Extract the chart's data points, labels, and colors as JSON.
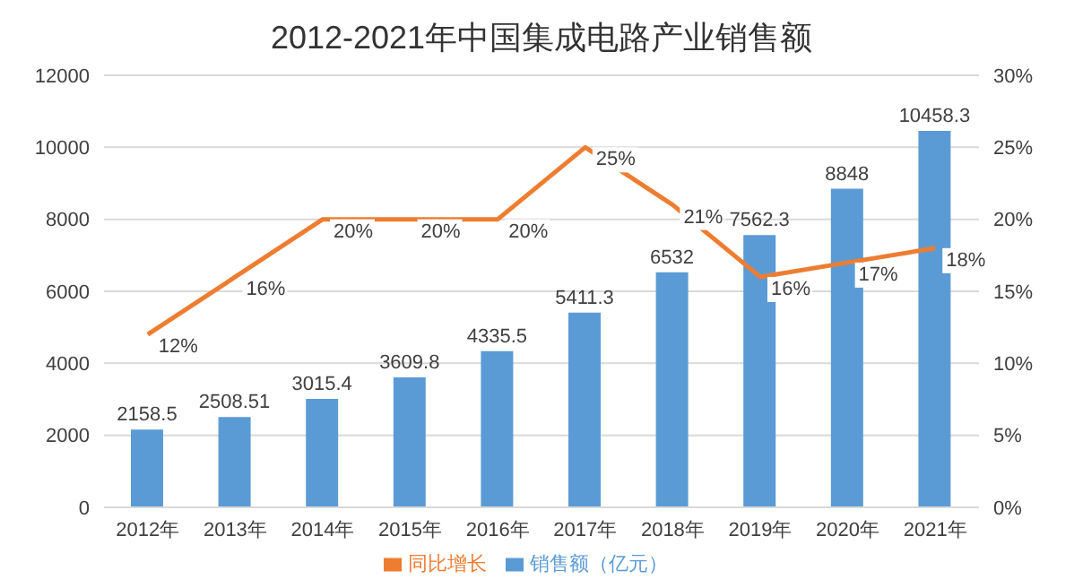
{
  "chart_data": {
    "type": "bar",
    "title": "2012-2021年中国集成电路产业销售额",
    "categories": [
      "2012年",
      "2013年",
      "2014年",
      "2015年",
      "2016年",
      "2017年",
      "2018年",
      "2019年",
      "2020年",
      "2021年"
    ],
    "series": [
      {
        "name": "销售额（亿元）",
        "color": "#5b9bd5",
        "values": [
          2158.5,
          2508.51,
          3015.4,
          3609.8,
          4335.5,
          5411.3,
          6532,
          7562.3,
          8848,
          10458.3
        ]
      },
      {
        "name": "同比增长",
        "type": "line",
        "axis": "y2",
        "color": "#ed7d31",
        "values": [
          12,
          16,
          20,
          20,
          20,
          25,
          21,
          16,
          17,
          18
        ],
        "value_labels": [
          "12%",
          "16%",
          "20%",
          "20%",
          "20%",
          "25%",
          "21%",
          "16%",
          "17%",
          "18%"
        ]
      }
    ],
    "data_labels": true,
    "ylim": [
      0,
      12000
    ],
    "yticks": [
      0,
      2000,
      4000,
      6000,
      8000,
      10000,
      12000
    ],
    "y2lim": [
      0,
      30
    ],
    "y2ticks": [
      {
        "value": 0,
        "label": "0%"
      },
      {
        "value": 5,
        "label": "5%"
      },
      {
        "value": 10,
        "label": "10%"
      },
      {
        "value": 15,
        "label": "15%"
      },
      {
        "value": 20,
        "label": "20%"
      },
      {
        "value": 25,
        "label": "25%"
      },
      {
        "value": 30,
        "label": "30%"
      }
    ],
    "grid": "y",
    "legend": "bottom",
    "marker": "none",
    "line_style": "solid"
  }
}
